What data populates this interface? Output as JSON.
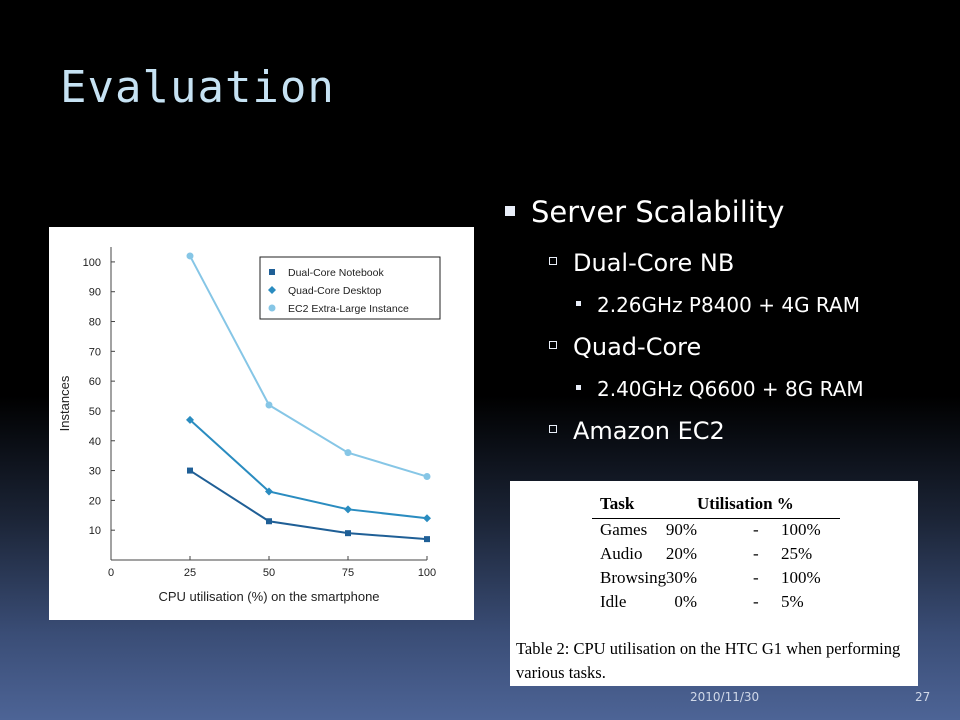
{
  "slide": {
    "title": "Evaluation",
    "footer_date": "2010/11/30",
    "page_number": "27"
  },
  "bullets": {
    "l1": "Server Scalability",
    "l2_1": "Dual-Core NB",
    "l3_1": "2.26GHz P8400 + 4G RAM",
    "l2_2": "Quad-Core",
    "l3_2": "2.40GHz Q6600 + 8G RAM",
    "l2_3": "Amazon EC2"
  },
  "chart_data": {
    "type": "line",
    "xlabel": "CPU utilisation (%) on the smartphone",
    "ylabel": "Instances",
    "x": [
      25,
      50,
      75,
      100
    ],
    "xticks": [
      "0",
      "25",
      "50",
      "75",
      "100"
    ],
    "yticks": [
      "10",
      "20",
      "30",
      "40",
      "50",
      "60",
      "70",
      "80",
      "90",
      "100"
    ],
    "xlim": [
      0,
      100
    ],
    "ylim": [
      0,
      105
    ],
    "grid": false,
    "legend_position": "top-right",
    "series": [
      {
        "name": "Dual-Core Notebook",
        "values": [
          30,
          13,
          9,
          7
        ],
        "color": "#1f5f96",
        "marker": "square"
      },
      {
        "name": "Quad-Core Desktop",
        "values": [
          47,
          23,
          17,
          14
        ],
        "color": "#2a8cc0",
        "marker": "diamond"
      },
      {
        "name": "EC2 Extra-Large Instance",
        "values": [
          102,
          52,
          36,
          28
        ],
        "color": "#86c6e6",
        "marker": "circle"
      }
    ]
  },
  "table": {
    "headers": [
      "Task",
      "Utilisation %"
    ],
    "rows": [
      {
        "task": "Games",
        "low": "90%",
        "dash": "-",
        "high": "100%"
      },
      {
        "task": "Audio",
        "low": "20%",
        "dash": "-",
        "high": "25%"
      },
      {
        "task": "Browsing",
        "low": "30%",
        "dash": "-",
        "high": "100%"
      },
      {
        "task": "Idle",
        "low": "0%",
        "dash": "-",
        "high": "5%"
      }
    ],
    "caption": "Table 2: CPU utilisation on the HTC G1 when performing various tasks."
  }
}
